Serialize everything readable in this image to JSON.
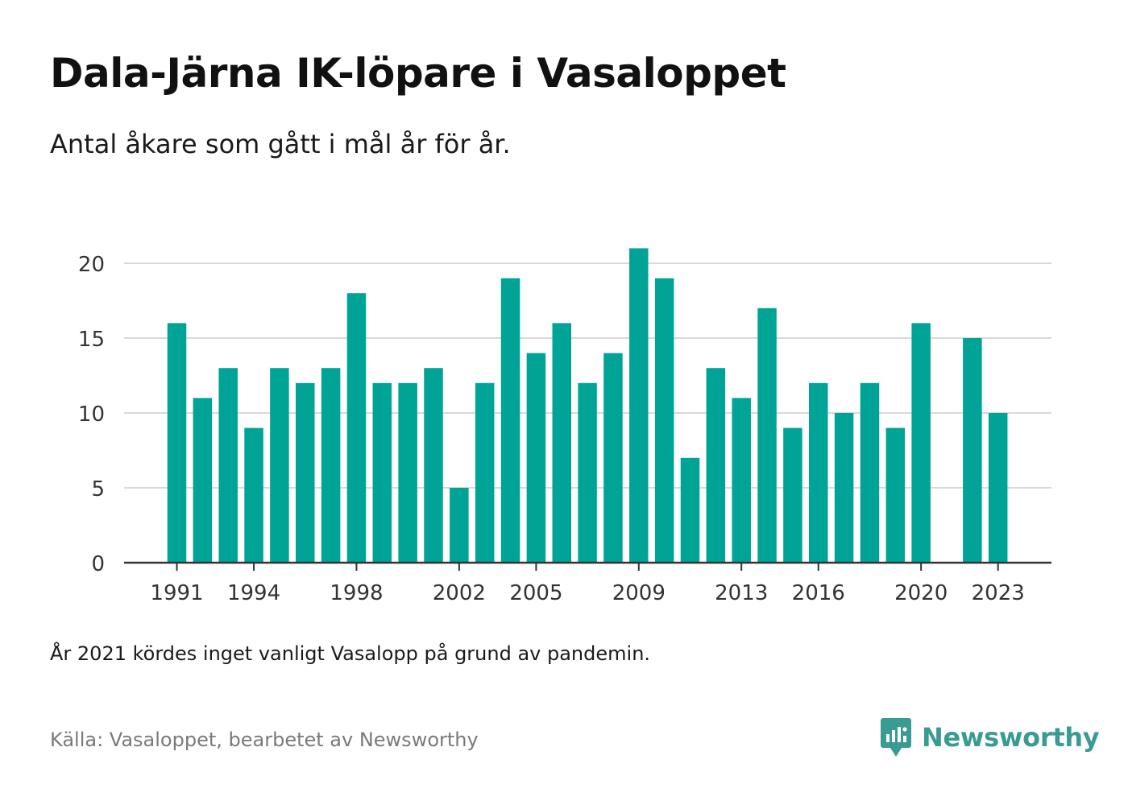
{
  "title": "Dala-Järna IK-löpare i Vasaloppet",
  "subtitle": "Antal åkare som gått i mål år för år.",
  "note": "År 2021 kördes inget vanligt Vasalopp på grund av pandemin.",
  "source": "Källa: Vasaloppet, bearbetet av Newsworthy",
  "brand": {
    "name": "Newsworthy",
    "logo_icon": "newsworthy-logo-icon",
    "color": "#3a9b92"
  },
  "chart_data": {
    "type": "bar",
    "title": "Dala-Järna IK-löpare i Vasaloppet",
    "subtitle": "Antal åkare som gått i mål år för år.",
    "xlabel": "",
    "ylabel": "",
    "bar_color": "#00a497",
    "grid": true,
    "ylim": [
      0,
      22
    ],
    "yticks": [
      0,
      5,
      10,
      15,
      20
    ],
    "xticks": [
      1991,
      1994,
      1998,
      2002,
      2005,
      2009,
      2013,
      2016,
      2020,
      2023
    ],
    "x": [
      1991,
      1992,
      1993,
      1994,
      1995,
      1996,
      1997,
      1998,
      1999,
      2000,
      2001,
      2002,
      2003,
      2004,
      2005,
      2006,
      2007,
      2008,
      2009,
      2010,
      2011,
      2012,
      2013,
      2014,
      2015,
      2016,
      2017,
      2018,
      2019,
      2020,
      2021,
      2022,
      2023
    ],
    "values": [
      16,
      11,
      13,
      9,
      13,
      12,
      13,
      18,
      12,
      12,
      13,
      5,
      12,
      19,
      14,
      16,
      12,
      14,
      21,
      19,
      7,
      13,
      11,
      17,
      9,
      12,
      10,
      12,
      9,
      16,
      null,
      15,
      10
    ]
  }
}
